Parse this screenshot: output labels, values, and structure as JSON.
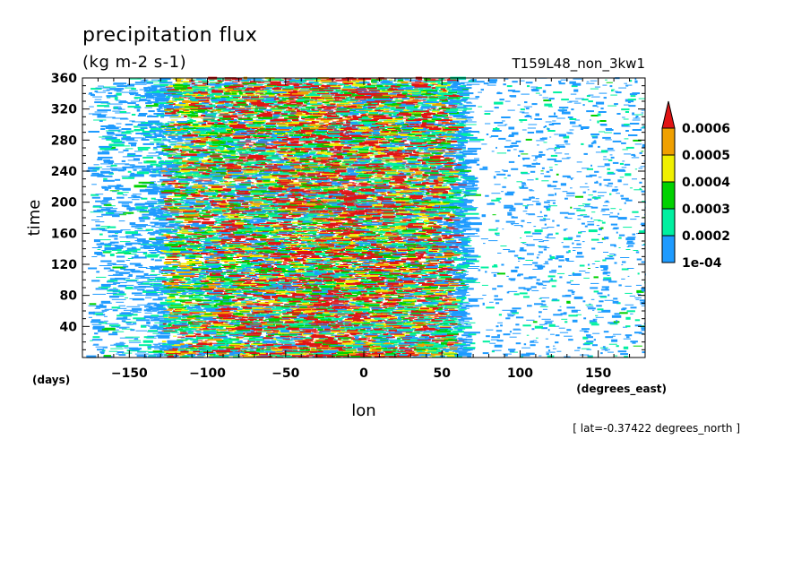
{
  "chart_data": {
    "type": "heatmap",
    "title": "precipitation flux",
    "units_label": "(kg m-2 s-1)",
    "run_label": "T159L48_non_3kw1",
    "xlabel": "lon",
    "xunits": "(degrees_east)",
    "ylabel": "time",
    "yunits": "(days)",
    "subset_note": "[ lat=-0.37422 degrees_north ]",
    "xlim": [
      -180,
      180
    ],
    "ylim": [
      0,
      360
    ],
    "x_ticks": [
      -150,
      -100,
      -50,
      0,
      50,
      100,
      150
    ],
    "x_tick_labels": [
      "−150",
      "−100",
      "−50",
      "0",
      "50",
      "100",
      "150"
    ],
    "y_ticks": [
      40,
      80,
      120,
      160,
      200,
      240,
      280,
      320,
      360
    ],
    "y_tick_labels": [
      "40",
      "80",
      "120",
      "160",
      "200",
      "240",
      "280",
      "320",
      "360"
    ],
    "colorbar": {
      "levels": [
        0.0001,
        0.0002,
        0.0003,
        0.0004,
        0.0005,
        0.0006
      ],
      "labels": [
        "1e-04",
        "0.0002",
        "0.0003",
        "0.0004",
        "0.0005",
        "0.0006"
      ],
      "colors": [
        "#1e9bff",
        "#00f0a0",
        "#00d200",
        "#f0f000",
        "#f0a000",
        "#e11414"
      ],
      "extend": "max"
    },
    "pattern": {
      "band_lon_range": [
        -130,
        55
      ],
      "peak_lon": -20,
      "sparse_lon_range": [
        60,
        180
      ]
    }
  }
}
